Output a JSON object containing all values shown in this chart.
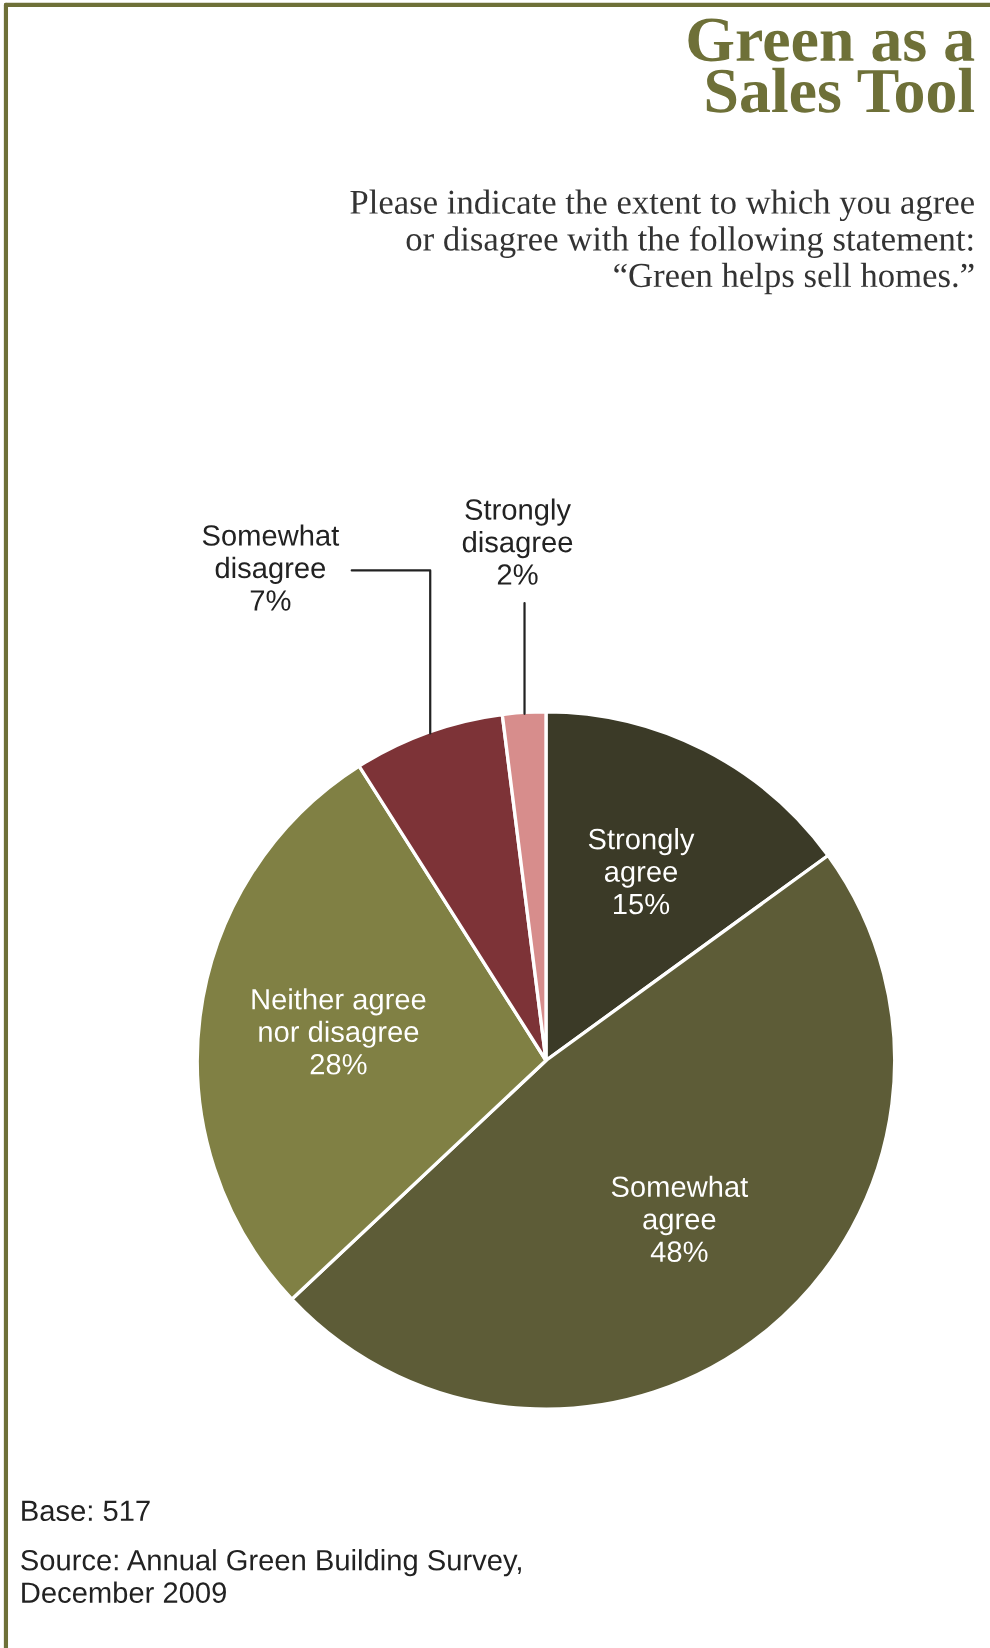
{
  "chart_data": {
    "type": "pie",
    "title": "Green as a\nSales Tool",
    "subtitle": "Please indicate the extent to which you agree\nor disagree with the following statement:\n“Green helps sell homes.”",
    "categories": [
      "Strongly\nagree",
      "Somewhat\nagree",
      "Neither agree\nnor disagree",
      "Somewhat\ndisagree",
      "Strongly\ndisagree"
    ],
    "values": [
      15,
      48,
      28,
      7,
      2
    ],
    "colors": [
      "#3b3a27",
      "#5d5c37",
      "#808044",
      "#7d3337",
      "#d78d8c"
    ],
    "value_labels": [
      "15%",
      "48%",
      "28%",
      "7%",
      "2%"
    ],
    "annotations": [
      "Base: 517",
      "Source: Annual Green Building Survey,\nDecember 2009"
    ]
  }
}
